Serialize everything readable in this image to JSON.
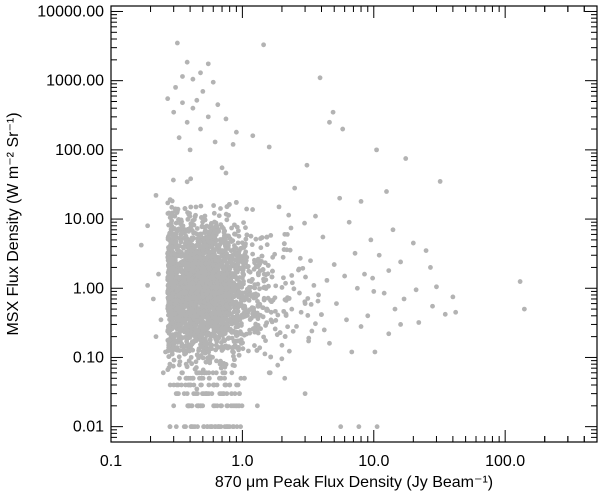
{
  "chart_data": {
    "type": "scatter",
    "xlabel": "870 μm Peak Flux Density (Jy Beam⁻¹)",
    "ylabel": "MSX Flux Density (W m⁻² Sr⁻¹)",
    "x_scale": "log",
    "y_scale": "log",
    "xlim": [
      0.1,
      500
    ],
    "ylim": [
      0.006,
      12000
    ],
    "x_tick_labels": [
      "0.1",
      "1.0",
      "10.0",
      "100.0"
    ],
    "x_tick_values": [
      0.1,
      1,
      10,
      100
    ],
    "y_tick_labels": [
      "0.01",
      "0.10",
      "1.00",
      "10.00",
      "100.00",
      "1000.00",
      "10000.00"
    ],
    "y_tick_values": [
      0.01,
      0.1,
      1,
      10,
      100,
      1000,
      10000
    ],
    "grid": false,
    "legend": "none",
    "point_color": "#b3b3b3",
    "series": [
      {
        "points": [
          [
            0.32,
            3500
          ],
          [
            1.45,
            3300
          ],
          [
            0.38,
            1850
          ],
          [
            0.55,
            1750
          ],
          [
            0.48,
            1300
          ],
          [
            0.35,
            1150
          ],
          [
            0.42,
            1050
          ],
          [
            3.9,
            1100
          ],
          [
            0.6,
            950
          ],
          [
            0.31,
            800
          ],
          [
            0.5,
            700
          ],
          [
            0.27,
            550
          ],
          [
            0.45,
            520
          ],
          [
            0.35,
            480
          ],
          [
            0.65,
            450
          ],
          [
            0.42,
            400
          ],
          [
            0.3,
            350
          ],
          [
            4.9,
            350
          ],
          [
            0.55,
            300
          ],
          [
            0.75,
            280
          ],
          [
            4.6,
            250
          ],
          [
            0.38,
            250
          ],
          [
            5.8,
            200
          ],
          [
            0.48,
            200
          ],
          [
            0.9,
            180
          ],
          [
            1.2,
            160
          ],
          [
            0.33,
            150
          ],
          [
            10.5,
            100
          ],
          [
            0.62,
            130
          ],
          [
            0.85,
            120
          ],
          [
            1.6,
            110
          ],
          [
            0.4,
            100
          ],
          [
            17.5,
            75
          ],
          [
            3.1,
            60
          ],
          [
            0.7,
            55
          ],
          [
            32,
            35
          ],
          [
            2.5,
            28
          ],
          [
            12.5,
            25
          ],
          [
            5.5,
            20
          ],
          [
            0.22,
            22
          ],
          [
            8,
            18
          ],
          [
            1.9,
            15
          ],
          [
            0.28,
            12
          ],
          [
            3.6,
            11
          ],
          [
            6.5,
            9
          ],
          [
            0.19,
            8
          ],
          [
            14,
            7
          ],
          [
            2.2,
            6
          ],
          [
            4.1,
            5.5
          ],
          [
            9.5,
            5
          ],
          [
            20,
            4.5
          ],
          [
            0.17,
            4.2
          ],
          [
            25,
            3.5
          ],
          [
            7.2,
            3.2
          ],
          [
            11,
            3
          ],
          [
            1.7,
            2.8
          ],
          [
            16,
            2.4
          ],
          [
            27,
            2
          ],
          [
            3.3,
            2.5
          ],
          [
            5,
            2.2
          ],
          [
            2.7,
            1.9
          ],
          [
            13,
            1.8
          ],
          [
            8.5,
            1.6
          ],
          [
            9.8,
            1.4
          ],
          [
            6,
            1.5
          ],
          [
            4.4,
            1.3
          ],
          [
            130,
            1.25
          ],
          [
            3.5,
            1.1
          ],
          [
            30,
            1.05
          ],
          [
            21,
            0.95
          ],
          [
            10,
            0.9
          ],
          [
            2.4,
            1.2
          ],
          [
            7.5,
            1.0
          ],
          [
            12,
            0.85
          ],
          [
            40,
            0.75
          ],
          [
            3.8,
            0.8
          ],
          [
            17,
            0.7
          ],
          [
            5.2,
            0.6
          ],
          [
            14.5,
            0.5
          ],
          [
            28,
            0.55
          ],
          [
            140,
            0.5
          ],
          [
            42,
            0.45
          ],
          [
            35,
            0.42
          ],
          [
            22,
            0.32
          ],
          [
            9,
            0.4
          ],
          [
            6.2,
            0.35
          ],
          [
            13,
            0.22
          ],
          [
            8,
            0.28
          ],
          [
            16,
            0.3
          ],
          [
            2.8,
            0.45
          ],
          [
            4.2,
            0.25
          ],
          [
            10.2,
            0.12
          ],
          [
            4.6,
            0.16
          ],
          [
            3.2,
            0.19
          ],
          [
            6.8,
            0.12
          ],
          [
            2.0,
            0.15
          ],
          [
            0.21,
            0.7
          ],
          [
            0.19,
            1.1
          ],
          [
            0.23,
            1.6
          ],
          [
            0.24,
            0.35
          ],
          [
            0.22,
            0.2
          ],
          [
            0.26,
            0.12
          ],
          [
            0.25,
            0.06
          ],
          [
            1.6,
            0.06
          ],
          [
            2.1,
            0.05
          ],
          [
            0.8,
            0.04
          ],
          [
            3.0,
            0.03
          ],
          [
            0.45,
            0.035
          ],
          [
            5.6,
            0.01
          ],
          [
            7.7,
            0.01
          ],
          [
            10.6,
            0.01
          ],
          [
            0.3,
            0.02
          ],
          [
            0.9,
            0.02
          ],
          [
            1.3,
            0.02
          ]
        ]
      }
    ],
    "generated_cloud": {
      "count": 3200,
      "center_x": 0.47,
      "center_y": 0.95,
      "log_spread_x": 0.16,
      "log_spread_y": 0.48,
      "x_min": 0.27,
      "x_max": 4.0,
      "y_min": 0.01,
      "y_max": 900,
      "quantized_rows_y": [
        0.01,
        0.02,
        0.03,
        0.04,
        0.05,
        0.06
      ]
    }
  }
}
